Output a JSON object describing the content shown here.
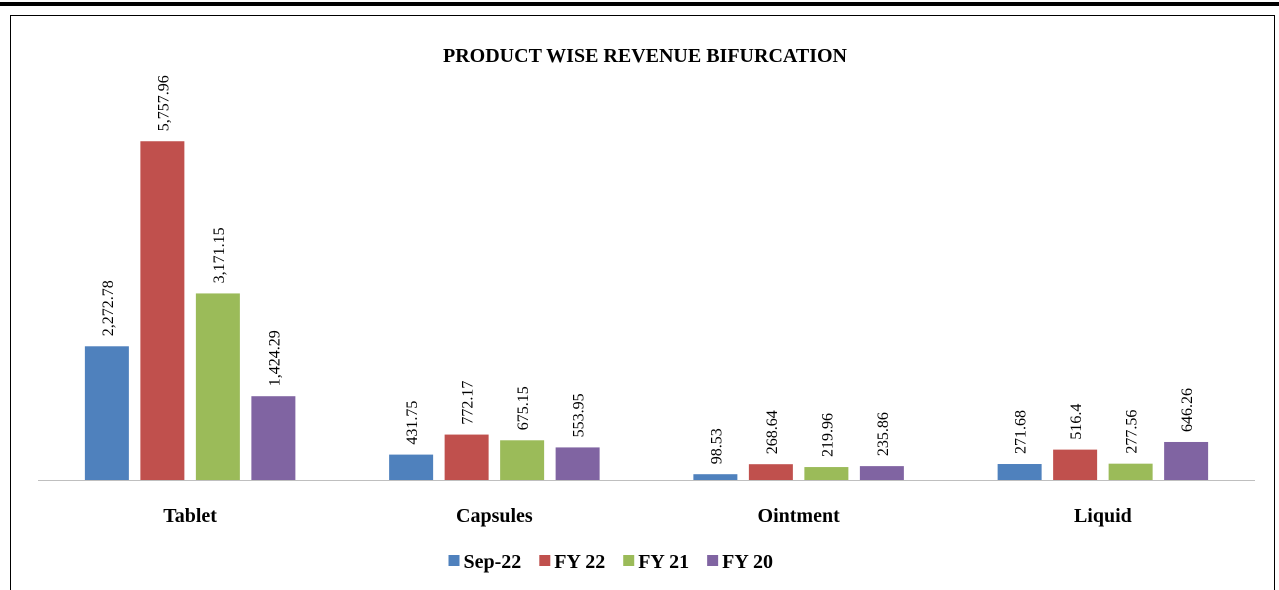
{
  "chart_data": {
    "type": "bar",
    "title": "PRODUCT WISE REVENUE BIFURCATION",
    "categories": [
      "Tablet",
      "Capsules",
      "Ointment",
      "Liquid"
    ],
    "series": [
      {
        "name": "Sep-22",
        "color": "#4f81bd",
        "values": [
          2272.78,
          431.75,
          98.53,
          271.68
        ],
        "value_labels": [
          "2,272.78",
          "431.75",
          "98.53",
          "271.68"
        ]
      },
      {
        "name": "FY 22",
        "color": "#c0504d",
        "values": [
          5757.96,
          772.17,
          268.64,
          516.4
        ],
        "value_labels": [
          "5,757.96",
          "772.17",
          "268.64",
          "516.4"
        ]
      },
      {
        "name": "FY 21",
        "color": "#9bbb59",
        "values": [
          3171.15,
          675.15,
          219.96,
          277.56
        ],
        "value_labels": [
          "3,171.15",
          "675.15",
          "219.96",
          "277.56"
        ]
      },
      {
        "name": "FY 20",
        "color": "#8064a2",
        "values": [
          1424.29,
          553.95,
          235.86,
          646.26
        ],
        "value_labels": [
          "1,424.29",
          "553.95",
          "235.86",
          "646.26"
        ]
      }
    ],
    "ylim": [
      0,
      6000
    ]
  }
}
